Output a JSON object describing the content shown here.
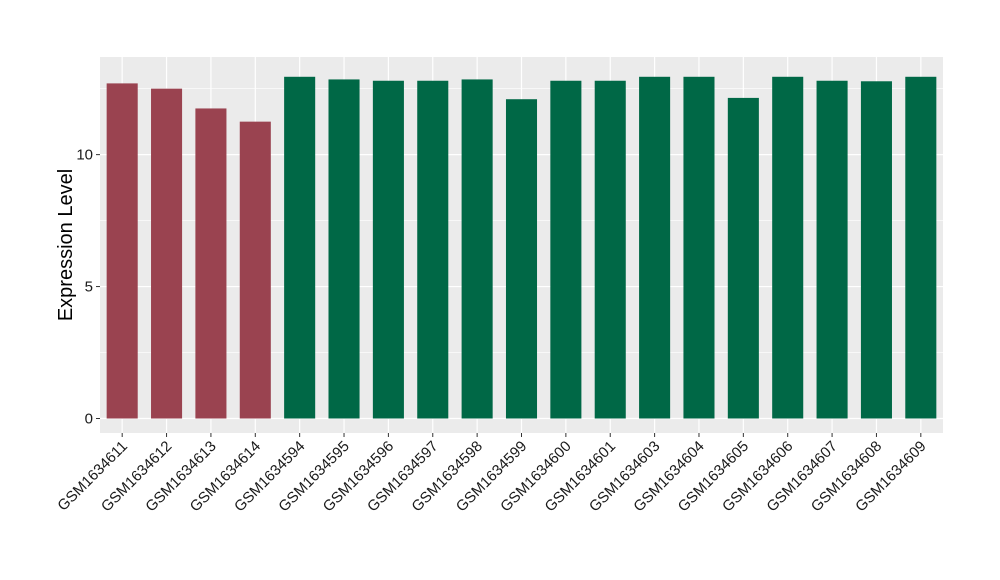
{
  "chart_data": {
    "type": "bar",
    "title": "",
    "xlabel": "",
    "ylabel": "Expression Level",
    "ylim": [
      -0.55,
      13.7
    ],
    "yticks": [
      0,
      5,
      10
    ],
    "grid": true,
    "legend": "none",
    "categories": [
      "GSM1634611",
      "GSM1634612",
      "GSM1634613",
      "GSM1634614",
      "GSM1634594",
      "GSM1634595",
      "GSM1634596",
      "GSM1634597",
      "GSM1634598",
      "GSM1634599",
      "GSM1634600",
      "GSM1634601",
      "GSM1634603",
      "GSM1634604",
      "GSM1634605",
      "GSM1634606",
      "GSM1634607",
      "GSM1634608",
      "GSM1634609"
    ],
    "values": [
      12.7,
      12.5,
      11.75,
      11.25,
      12.95,
      12.85,
      12.8,
      12.8,
      12.85,
      12.1,
      12.8,
      12.8,
      12.95,
      12.95,
      12.15,
      12.95,
      12.8,
      12.78,
      12.95
    ],
    "groups": [
      "a",
      "a",
      "a",
      "a",
      "b",
      "b",
      "b",
      "b",
      "b",
      "b",
      "b",
      "b",
      "b",
      "b",
      "b",
      "b",
      "b",
      "b",
      "b"
    ],
    "colors": {
      "a": "#9A4350",
      "b": "#006846"
    },
    "panel_background": "#EBEBEB",
    "grid_color": "#FFFFFF"
  }
}
